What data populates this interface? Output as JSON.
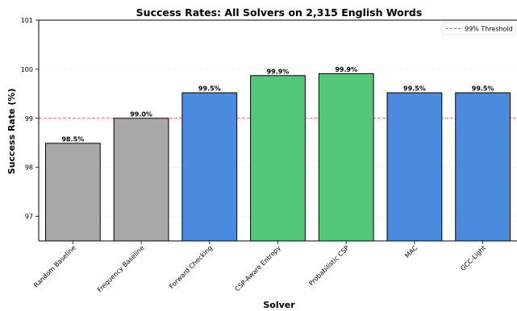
{
  "chart_data": {
    "type": "bar",
    "title": "Success Rates: All Solvers on 2,315 English Words",
    "xlabel": "Solver",
    "ylabel": "Success Rate (%)",
    "ylim": [
      96.5,
      101
    ],
    "yticks": [
      97,
      98,
      99,
      100,
      101
    ],
    "grid": true,
    "legend_position": "top-right",
    "categories": [
      "Random Baseline",
      "Frequency Baseline",
      "Forward Checking",
      "CSP-Aware Entropy",
      "Probabilistic CSP",
      "MAC",
      "GCC-Light"
    ],
    "values": [
      98.49,
      99.0,
      99.52,
      99.87,
      99.91,
      99.52,
      99.52
    ],
    "data_labels": [
      "98.5%",
      "99.0%",
      "99.5%",
      "99.9%",
      "99.9%",
      "99.5%",
      "99.5%"
    ],
    "bar_colors": [
      "#a8a8a8",
      "#a8a8a8",
      "#4a8be0",
      "#52c878",
      "#52c878",
      "#4a8be0",
      "#4a8be0"
    ],
    "threshold": {
      "value": 99,
      "label": "99% Threshold",
      "color": "#e05a5a"
    }
  }
}
